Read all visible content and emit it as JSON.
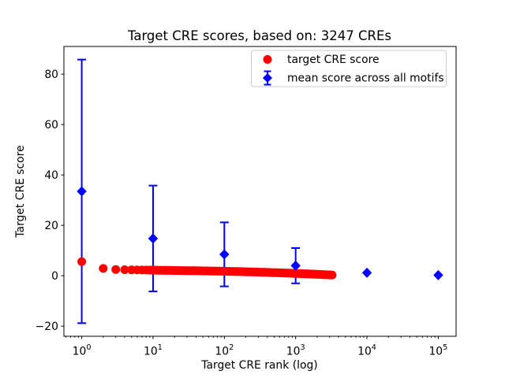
{
  "chart_data": {
    "type": "scatter",
    "title": "Target CRE scores, based on: 3247 CREs",
    "xlabel": "Target CRE rank (log)",
    "ylabel": "Target CRE score",
    "x_scale": "log",
    "xlim_log10": [
      -0.25,
      5.25
    ],
    "ylim": [
      -24,
      91
    ],
    "grid": false,
    "background_color": "#ffffff",
    "axis_color": "#000000",
    "yticks": [
      {
        "v": -20,
        "label": "−20"
      },
      {
        "v": 0,
        "label": "0"
      },
      {
        "v": 20,
        "label": "20"
      },
      {
        "v": 40,
        "label": "40"
      },
      {
        "v": 60,
        "label": "60"
      },
      {
        "v": 80,
        "label": "80"
      }
    ],
    "xticks": [
      {
        "v": 1,
        "base": "10",
        "exp": "0"
      },
      {
        "v": 10,
        "base": "10",
        "exp": "1"
      },
      {
        "v": 100,
        "base": "10",
        "exp": "2"
      },
      {
        "v": 1000,
        "base": "10",
        "exp": "3"
      },
      {
        "v": 10000,
        "base": "10",
        "exp": "4"
      },
      {
        "v": 100000,
        "base": "10",
        "exp": "5"
      }
    ],
    "legend": {
      "position": "upper right"
    },
    "series": [
      {
        "name": "target CRE score",
        "color": "#ff0000",
        "marker": "circle",
        "n_points": 3247,
        "description": "one dot per CRE rank 1..3247, dense overlapping markers forming a band that decays toward 0",
        "sampled_points": [
          [
            1,
            5.6
          ],
          [
            2,
            2.9
          ],
          [
            3,
            2.5
          ],
          [
            4,
            2.4
          ],
          [
            5,
            2.35
          ],
          [
            7,
            2.3
          ],
          [
            10,
            2.25
          ],
          [
            20,
            2.1
          ],
          [
            50,
            1.95
          ],
          [
            100,
            1.8
          ],
          [
            200,
            1.6
          ],
          [
            500,
            1.25
          ],
          [
            1000,
            0.95
          ],
          [
            2000,
            0.6
          ],
          [
            3247,
            0.3
          ]
        ]
      },
      {
        "name": "mean score across all motifs",
        "color": "#0000ff",
        "marker": "diamond",
        "points": [
          {
            "x": 1,
            "y": 33.5,
            "yerr": 52.3
          },
          {
            "x": 10,
            "y": 14.8,
            "yerr": 21.0
          },
          {
            "x": 100,
            "y": 8.5,
            "yerr": 12.7
          },
          {
            "x": 1000,
            "y": 4.0,
            "yerr": 7.0
          },
          {
            "x": 10000,
            "y": 1.2,
            "yerr": 1.5
          },
          {
            "x": 100000,
            "y": 0.25,
            "yerr": 0.8
          }
        ]
      }
    ]
  }
}
